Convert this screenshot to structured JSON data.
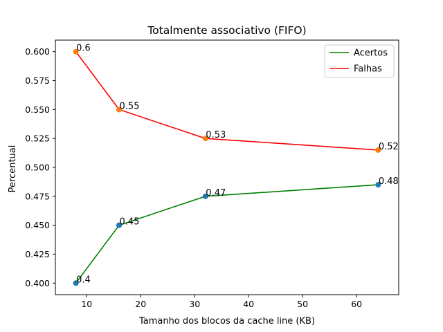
{
  "chart_data": {
    "type": "line",
    "title": "Totalmente associativo (FIFO)",
    "xlabel": "Tamanho dos blocos da cache line (KB)",
    "ylabel": "Percentual",
    "x": [
      8,
      16,
      32,
      64
    ],
    "xlim": [
      4.2,
      67.8
    ],
    "ylim": [
      0.39,
      0.61
    ],
    "xticks": [
      10,
      20,
      30,
      40,
      50,
      60
    ],
    "yticks": [
      0.4,
      0.425,
      0.45,
      0.475,
      0.5,
      0.525,
      0.55,
      0.575,
      0.6
    ],
    "xtick_labels": [
      "10",
      "20",
      "30",
      "40",
      "50",
      "60"
    ],
    "ytick_labels": [
      "0.400",
      "0.425",
      "0.450",
      "0.475",
      "0.500",
      "0.525",
      "0.550",
      "0.575",
      "0.600"
    ],
    "grid": false,
    "legend_position": "top-right",
    "series": [
      {
        "name": "Acertos",
        "values": [
          0.4,
          0.45,
          0.475,
          0.485
        ],
        "labels": [
          "0.4",
          "0.45",
          "0.47",
          "0.48"
        ],
        "line_color": "#008000",
        "marker_color": "#1f77b4"
      },
      {
        "name": "Falhas",
        "values": [
          0.6,
          0.55,
          0.525,
          0.515
        ],
        "labels": [
          "0.6",
          "0.55",
          "0.53",
          "0.52"
        ],
        "line_color": "#ff0000",
        "marker_color": "#ff7f0e"
      }
    ]
  }
}
